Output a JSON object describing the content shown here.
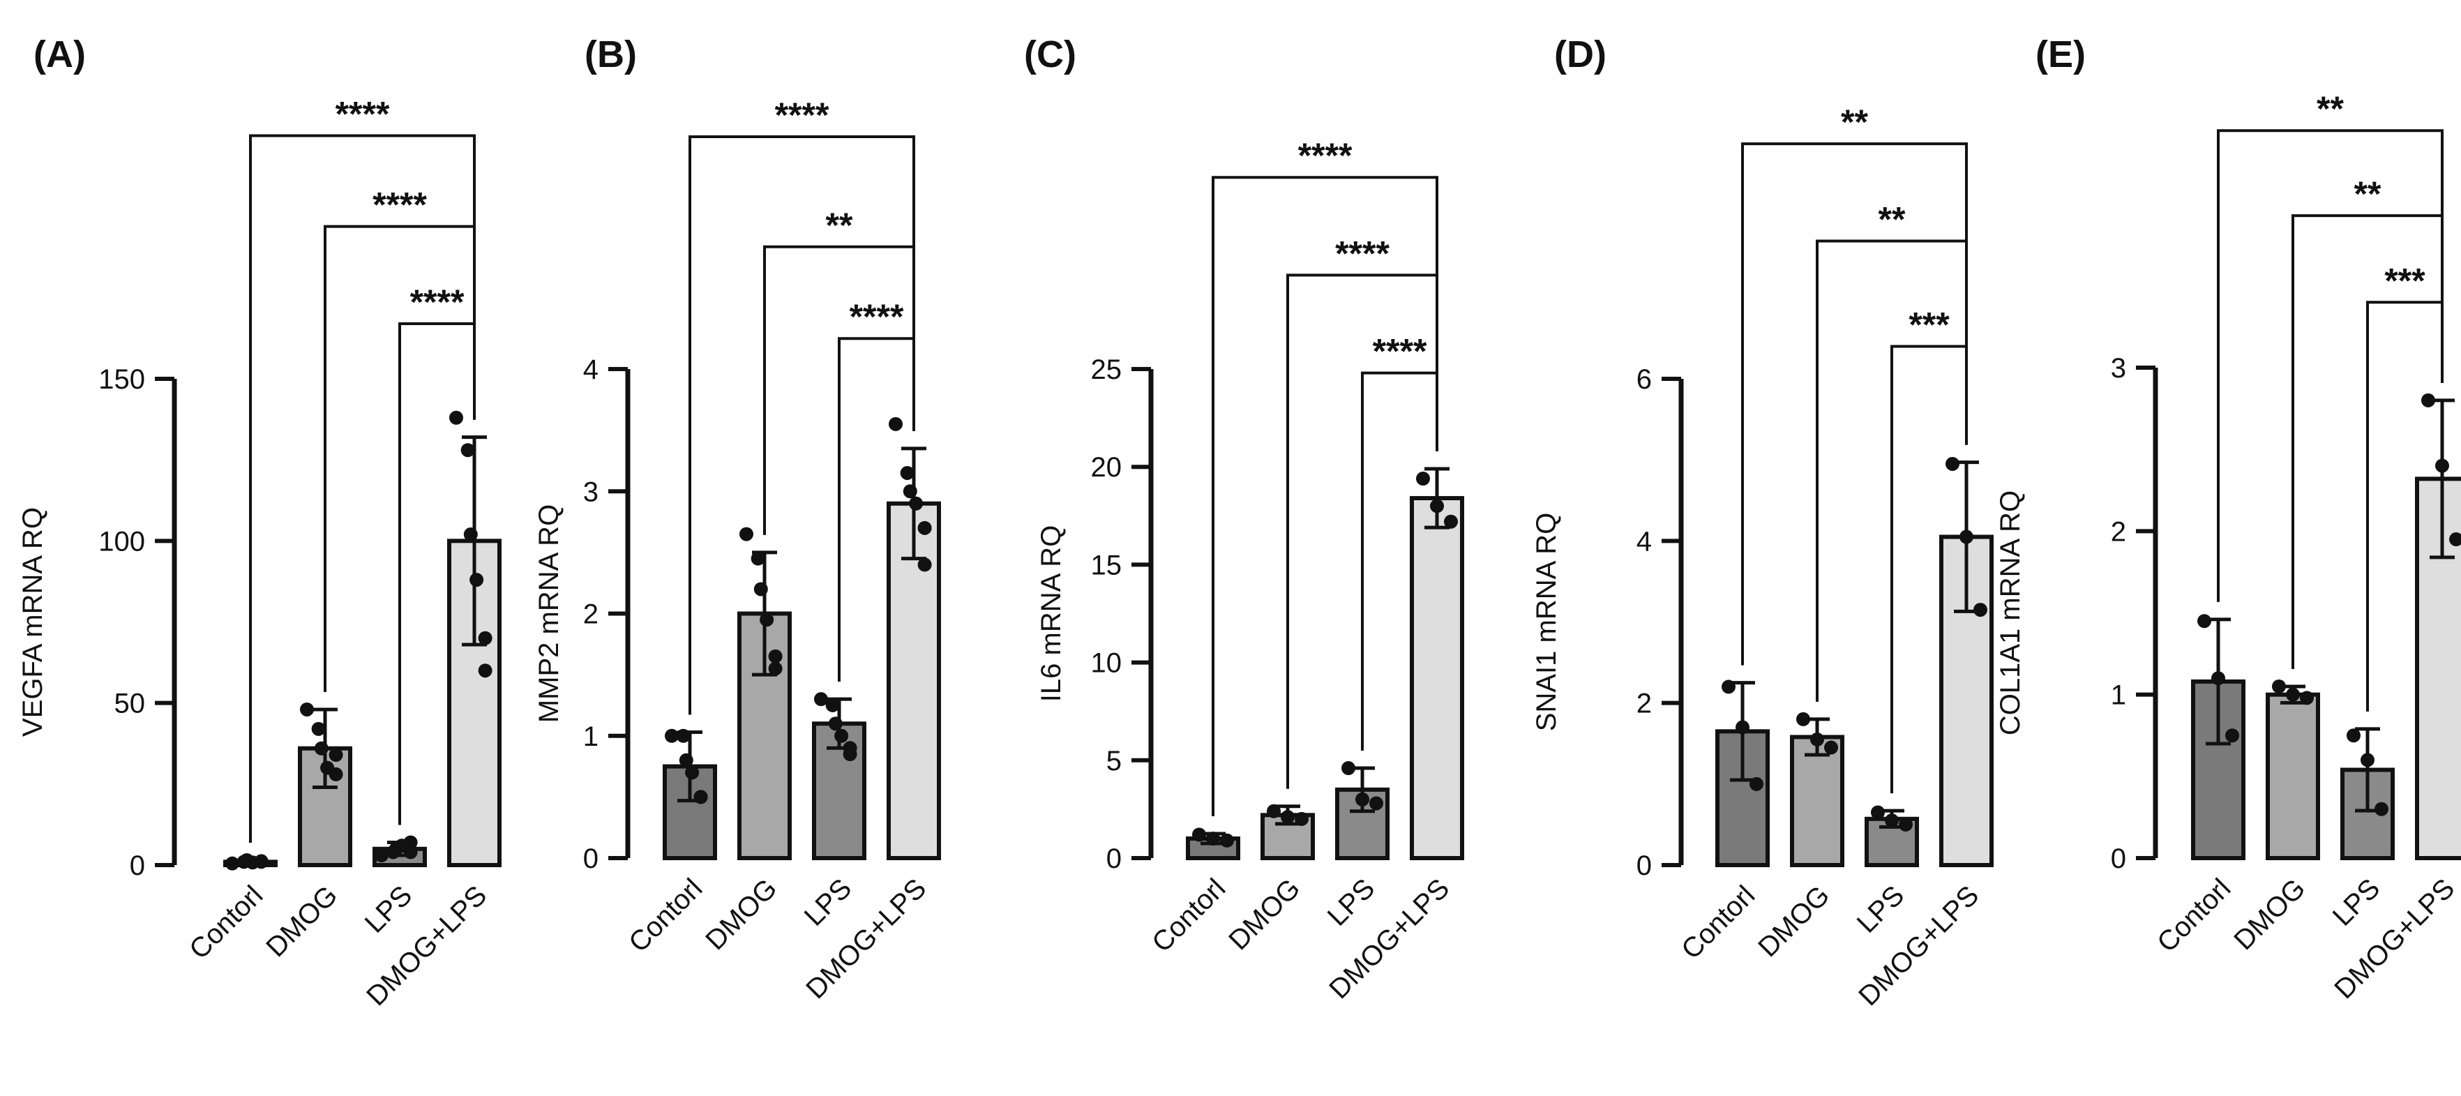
{
  "chart_data": [
    {
      "type": "bar",
      "panel": "(A)",
      "ylabel": "VEGFA mRNA RQ",
      "categories": [
        "Contorl",
        "DMOG",
        "LPS",
        "DMOG+LPS"
      ],
      "values": [
        1,
        36,
        5,
        100
      ],
      "errors": [
        0.5,
        12,
        2,
        32
      ],
      "points": [
        [
          0.5,
          1,
          1.5,
          0.8,
          1.2,
          1
        ],
        [
          48,
          42,
          36,
          30,
          28,
          34
        ],
        [
          3,
          4,
          5,
          6,
          7,
          4
        ],
        [
          138,
          128,
          102,
          88,
          70,
          60
        ]
      ],
      "ylim": [
        0,
        150
      ],
      "yticks": [
        0,
        50,
        100,
        150
      ],
      "comparisons": [
        {
          "from": 0,
          "to": 3,
          "label": "****",
          "y": 225
        },
        {
          "from": 1,
          "to": 3,
          "label": "****",
          "y": 197
        },
        {
          "from": 2,
          "to": 3,
          "label": "****",
          "y": 167
        }
      ]
    },
    {
      "type": "bar",
      "panel": "(B)",
      "ylabel": "MMP2 mRNA RQ",
      "categories": [
        "Contorl",
        "DMOG",
        "LPS",
        "DMOG+LPS"
      ],
      "values": [
        0.75,
        2.0,
        1.1,
        2.9
      ],
      "errors": [
        0.28,
        0.5,
        0.2,
        0.45
      ],
      "points": [
        [
          1.0,
          1.0,
          0.8,
          0.7,
          0.5,
          0.5
        ],
        [
          2.65,
          2.45,
          2.2,
          1.95,
          1.65,
          1.55
        ],
        [
          1.3,
          1.25,
          1.1,
          1.0,
          0.9,
          0.85
        ],
        [
          3.55,
          3.15,
          3.0,
          2.9,
          2.7,
          2.4
        ]
      ],
      "ylim": [
        0,
        4
      ],
      "yticks": [
        0,
        1,
        2,
        3,
        4
      ],
      "comparisons": [
        {
          "from": 0,
          "to": 3,
          "label": "****",
          "y": 5.9
        },
        {
          "from": 1,
          "to": 3,
          "label": "**",
          "y": 5.0
        },
        {
          "from": 2,
          "to": 3,
          "label": "****",
          "y": 4.25
        }
      ]
    },
    {
      "type": "bar",
      "panel": "(C)",
      "ylabel": "IL6 mRNA RQ",
      "categories": [
        "Contorl",
        "DMOG",
        "LPS",
        "DMOG+LPS"
      ],
      "values": [
        1,
        2.2,
        3.5,
        18.4
      ],
      "errors": [
        0.25,
        0.45,
        1.1,
        1.5
      ],
      "points": [
        [
          1.2,
          1.0,
          0.9
        ],
        [
          2.4,
          2.1,
          2.0
        ],
        [
          4.6,
          3.0,
          2.8
        ],
        [
          19.4,
          18.0,
          17.2
        ]
      ],
      "ylim": [
        0,
        25
      ],
      "yticks": [
        0,
        5,
        10,
        15,
        20,
        25
      ],
      "comparisons": [
        {
          "from": 0,
          "to": 3,
          "label": "****",
          "y": 34.8
        },
        {
          "from": 1,
          "to": 3,
          "label": "****",
          "y": 29.8
        },
        {
          "from": 2,
          "to": 3,
          "label": "****",
          "y": 24.8
        }
      ]
    },
    {
      "type": "bar",
      "panel": "(D)",
      "ylabel": "SNAI1 mRNA RQ",
      "categories": [
        "Contorl",
        "DMOG",
        "LPS",
        "DMOG+LPS"
      ],
      "values": [
        1.65,
        1.58,
        0.57,
        4.05
      ],
      "errors": [
        0.6,
        0.22,
        0.1,
        0.92
      ],
      "points": [
        [
          2.2,
          1.7,
          1.0
        ],
        [
          1.8,
          1.55,
          1.45
        ],
        [
          0.65,
          0.55,
          0.5
        ],
        [
          4.95,
          4.05,
          3.15
        ]
      ],
      "ylim": [
        0,
        6
      ],
      "yticks": [
        0,
        2,
        4,
        6
      ],
      "comparisons": [
        {
          "from": 0,
          "to": 3,
          "label": "**",
          "y": 8.9
        },
        {
          "from": 1,
          "to": 3,
          "label": "**",
          "y": 7.7
        },
        {
          "from": 2,
          "to": 3,
          "label": "***",
          "y": 6.4
        }
      ]
    },
    {
      "type": "bar",
      "panel": "(E)",
      "ylabel": "COL1A1 mRNA RQ",
      "categories": [
        "Contorl",
        "DMOG",
        "LPS",
        "DMOG+LPS"
      ],
      "values": [
        1.08,
        1.0,
        0.54,
        2.32
      ],
      "errors": [
        0.38,
        0.05,
        0.25,
        0.48
      ],
      "points": [
        [
          1.45,
          1.1,
          0.75
        ],
        [
          1.05,
          1.0,
          0.98
        ],
        [
          0.75,
          0.6,
          0.3
        ],
        [
          2.8,
          2.4,
          1.95
        ]
      ],
      "ylim": [
        0,
        3
      ],
      "yticks": [
        0,
        1,
        2,
        3
      ],
      "comparisons": [
        {
          "from": 0,
          "to": 3,
          "label": "**",
          "y": 4.45
        },
        {
          "from": 1,
          "to": 3,
          "label": "**",
          "y": 3.93
        },
        {
          "from": 2,
          "to": 3,
          "label": "***",
          "y": 3.4
        }
      ]
    }
  ],
  "colors": {
    "bar_fills": [
      "#7a7a7a",
      "#a8a8a8",
      "#8a8a8a",
      "#dedede"
    ],
    "stroke": "#111111",
    "point": "#111111"
  }
}
